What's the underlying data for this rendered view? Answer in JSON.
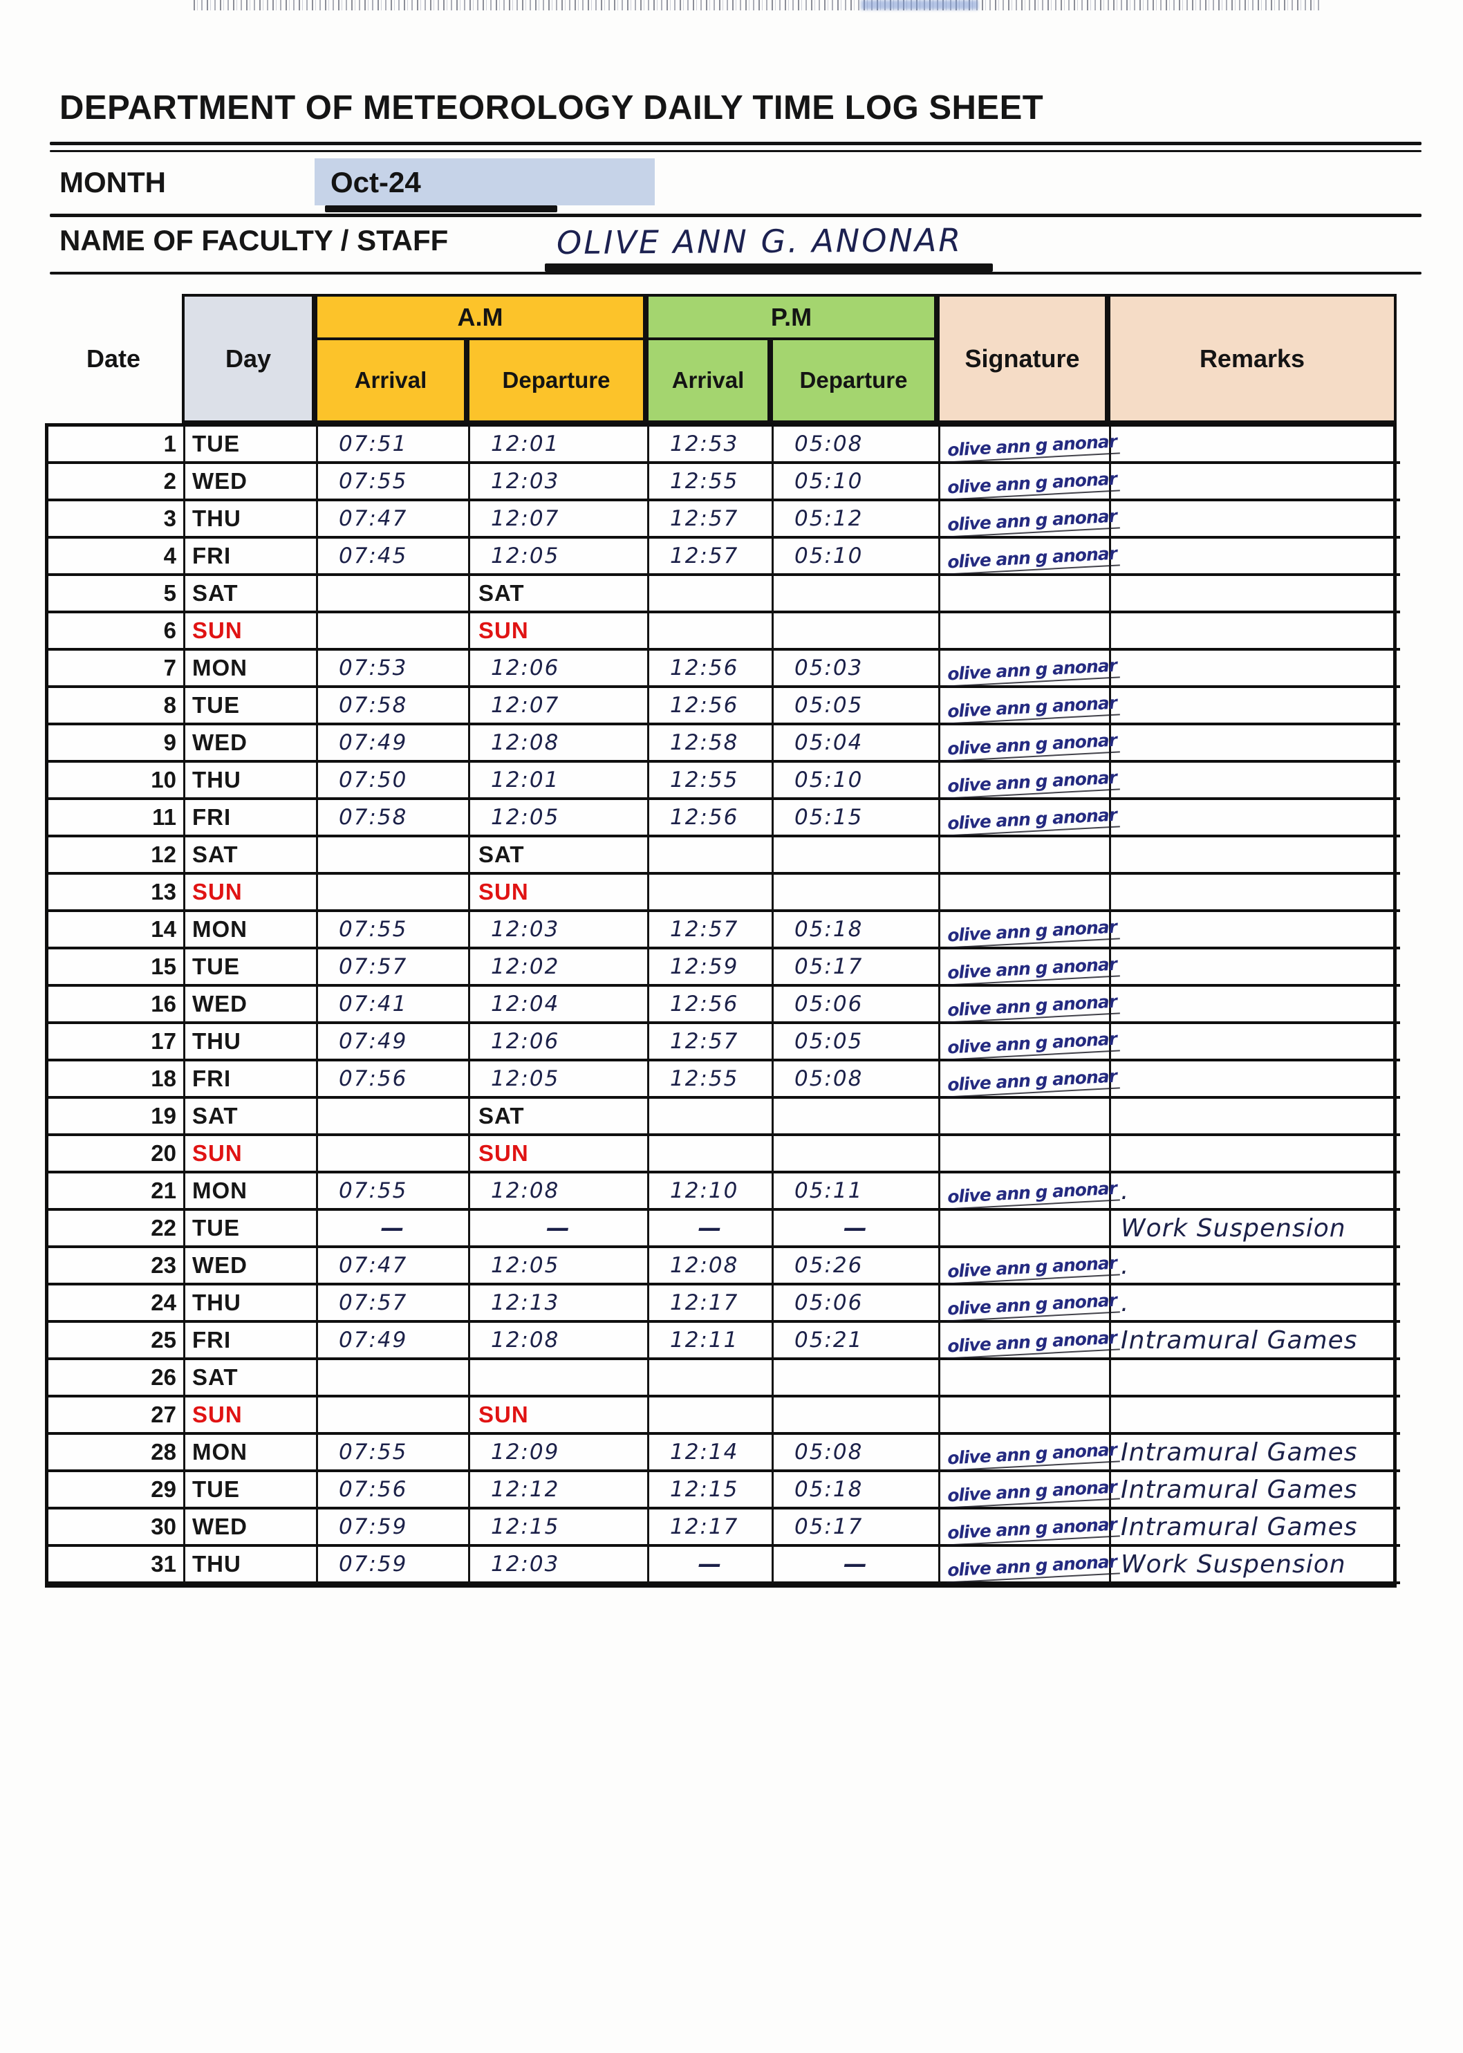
{
  "header": {
    "title": "DEPARTMENT OF METEOROLOGY DAILY TIME LOG SHEET",
    "month_label": "MONTH",
    "month_value": "Oct-24",
    "name_label": "NAME OF FACULTY / STAFF",
    "name_value": "OLIVE ANN G. ANONAR"
  },
  "table": {
    "group_am": "A.M",
    "group_pm": "P.M",
    "headers": {
      "date": "Date",
      "day": "Day",
      "arrival": "Arrival",
      "departure": "Departure",
      "signature": "Signature",
      "remarks": "Remarks"
    },
    "signature_text": "olive ann g anonar",
    "rows": [
      {
        "date": "1",
        "day": "TUE",
        "sun": false,
        "am_arrival": "07:51",
        "am_departure": "12:01",
        "dep_label": "",
        "pm_arrival": "12:53",
        "pm_departure": "05:08",
        "signature": true,
        "remark": ""
      },
      {
        "date": "2",
        "day": "WED",
        "sun": false,
        "am_arrival": "07:55",
        "am_departure": "12:03",
        "dep_label": "",
        "pm_arrival": "12:55",
        "pm_departure": "05:10",
        "signature": true,
        "remark": ""
      },
      {
        "date": "3",
        "day": "THU",
        "sun": false,
        "am_arrival": "07:47",
        "am_departure": "12:07",
        "dep_label": "",
        "pm_arrival": "12:57",
        "pm_departure": "05:12",
        "signature": true,
        "remark": ""
      },
      {
        "date": "4",
        "day": "FRI",
        "sun": false,
        "am_arrival": "07:45",
        "am_departure": "12:05",
        "dep_label": "",
        "pm_arrival": "12:57",
        "pm_departure": "05:10",
        "signature": true,
        "remark": ""
      },
      {
        "date": "5",
        "day": "SAT",
        "sun": false,
        "am_arrival": "",
        "am_departure": "",
        "dep_label": "SAT",
        "pm_arrival": "",
        "pm_departure": "",
        "signature": false,
        "remark": ""
      },
      {
        "date": "6",
        "day": "SUN",
        "sun": true,
        "am_arrival": "",
        "am_departure": "",
        "dep_label": "SUN",
        "pm_arrival": "",
        "pm_departure": "",
        "signature": false,
        "remark": ""
      },
      {
        "date": "7",
        "day": "MON",
        "sun": false,
        "am_arrival": "07:53",
        "am_departure": "12:06",
        "dep_label": "",
        "pm_arrival": "12:56",
        "pm_departure": "05:03",
        "signature": true,
        "remark": ""
      },
      {
        "date": "8",
        "day": "TUE",
        "sun": false,
        "am_arrival": "07:58",
        "am_departure": "12:07",
        "dep_label": "",
        "pm_arrival": "12:56",
        "pm_departure": "05:05",
        "signature": true,
        "remark": ""
      },
      {
        "date": "9",
        "day": "WED",
        "sun": false,
        "am_arrival": "07:49",
        "am_departure": "12:08",
        "dep_label": "",
        "pm_arrival": "12:58",
        "pm_departure": "05:04",
        "signature": true,
        "remark": ""
      },
      {
        "date": "10",
        "day": "THU",
        "sun": false,
        "am_arrival": "07:50",
        "am_departure": "12:01",
        "dep_label": "",
        "pm_arrival": "12:55",
        "pm_departure": "05:10",
        "signature": true,
        "remark": ""
      },
      {
        "date": "11",
        "day": "FRI",
        "sun": false,
        "am_arrival": "07:58",
        "am_departure": "12:05",
        "dep_label": "",
        "pm_arrival": "12:56",
        "pm_departure": "05:15",
        "signature": true,
        "remark": ""
      },
      {
        "date": "12",
        "day": "SAT",
        "sun": false,
        "am_arrival": "",
        "am_departure": "",
        "dep_label": "SAT",
        "pm_arrival": "",
        "pm_departure": "",
        "signature": false,
        "remark": ""
      },
      {
        "date": "13",
        "day": "SUN",
        "sun": true,
        "am_arrival": "",
        "am_departure": "",
        "dep_label": "SUN",
        "pm_arrival": "",
        "pm_departure": "",
        "signature": false,
        "remark": ""
      },
      {
        "date": "14",
        "day": "MON",
        "sun": false,
        "am_arrival": "07:55",
        "am_departure": "12:03",
        "dep_label": "",
        "pm_arrival": "12:57",
        "pm_departure": "05:18",
        "signature": true,
        "remark": ""
      },
      {
        "date": "15",
        "day": "TUE",
        "sun": false,
        "am_arrival": "07:57",
        "am_departure": "12:02",
        "dep_label": "",
        "pm_arrival": "12:59",
        "pm_departure": "05:17",
        "signature": true,
        "remark": ""
      },
      {
        "date": "16",
        "day": "WED",
        "sun": false,
        "am_arrival": "07:41",
        "am_departure": "12:04",
        "dep_label": "",
        "pm_arrival": "12:56",
        "pm_departure": "05:06",
        "signature": true,
        "remark": ""
      },
      {
        "date": "17",
        "day": "THU",
        "sun": false,
        "am_arrival": "07:49",
        "am_departure": "12:06",
        "dep_label": "",
        "pm_arrival": "12:57",
        "pm_departure": "05:05",
        "signature": true,
        "remark": ""
      },
      {
        "date": "18",
        "day": "FRI",
        "sun": false,
        "am_arrival": "07:56",
        "am_departure": "12:05",
        "dep_label": "",
        "pm_arrival": "12:55",
        "pm_departure": "05:08",
        "signature": true,
        "remark": ""
      },
      {
        "date": "19",
        "day": "SAT",
        "sun": false,
        "am_arrival": "",
        "am_departure": "",
        "dep_label": "SAT",
        "pm_arrival": "",
        "pm_departure": "",
        "signature": false,
        "remark": ""
      },
      {
        "date": "20",
        "day": "SUN",
        "sun": true,
        "am_arrival": "",
        "am_departure": "",
        "dep_label": "SUN",
        "pm_arrival": "",
        "pm_departure": "",
        "signature": false,
        "remark": ""
      },
      {
        "date": "21",
        "day": "MON",
        "sun": false,
        "am_arrival": "07:55",
        "am_departure": "12:08",
        "dep_label": "",
        "pm_arrival": "12:10",
        "pm_departure": "05:11",
        "signature": true,
        "remark": "."
      },
      {
        "date": "22",
        "day": "TUE",
        "sun": false,
        "am_arrival": "—",
        "am_departure": "—",
        "dep_label": "",
        "pm_arrival": "—",
        "pm_departure": "—",
        "signature": false,
        "remark": "Work Suspension"
      },
      {
        "date": "23",
        "day": "WED",
        "sun": false,
        "am_arrival": "07:47",
        "am_departure": "12:05",
        "dep_label": "",
        "pm_arrival": "12:08",
        "pm_departure": "05:26",
        "signature": true,
        "remark": "."
      },
      {
        "date": "24",
        "day": "THU",
        "sun": false,
        "am_arrival": "07:57",
        "am_departure": "12:13",
        "dep_label": "",
        "pm_arrival": "12:17",
        "pm_departure": "05:06",
        "signature": true,
        "remark": "."
      },
      {
        "date": "25",
        "day": "FRI",
        "sun": false,
        "am_arrival": "07:49",
        "am_departure": "12:08",
        "dep_label": "",
        "pm_arrival": "12:11",
        "pm_departure": "05:21",
        "signature": true,
        "remark": "Intramural Games"
      },
      {
        "date": "26",
        "day": "SAT",
        "sun": false,
        "am_arrival": "",
        "am_departure": "",
        "dep_label": "",
        "pm_arrival": "",
        "pm_departure": "",
        "signature": false,
        "remark": ""
      },
      {
        "date": "27",
        "day": "SUN",
        "sun": true,
        "am_arrival": "",
        "am_departure": "",
        "dep_label": "SUN",
        "pm_arrival": "",
        "pm_departure": "",
        "signature": false,
        "remark": ""
      },
      {
        "date": "28",
        "day": "MON",
        "sun": false,
        "am_arrival": "07:55",
        "am_departure": "12:09",
        "dep_label": "",
        "pm_arrival": "12:14",
        "pm_departure": "05:08",
        "signature": true,
        "remark": "Intramural Games"
      },
      {
        "date": "29",
        "day": "TUE",
        "sun": false,
        "am_arrival": "07:56",
        "am_departure": "12:12",
        "dep_label": "",
        "pm_arrival": "12:15",
        "pm_departure": "05:18",
        "signature": true,
        "remark": "Intramural Games"
      },
      {
        "date": "30",
        "day": "WED",
        "sun": false,
        "am_arrival": "07:59",
        "am_departure": "12:15",
        "dep_label": "",
        "pm_arrival": "12:17",
        "pm_departure": "05:17",
        "signature": true,
        "remark": "Intramural Games"
      },
      {
        "date": "31",
        "day": "THU",
        "sun": false,
        "am_arrival": "07:59",
        "am_departure": "12:03",
        "dep_label": "",
        "pm_arrival": "—",
        "pm_departure": "—",
        "signature": true,
        "remark": "Work Suspension"
      }
    ]
  },
  "colors": {
    "am_header": "#fcc32a",
    "pm_header": "#a4d56f",
    "day_header": "#dce0e8",
    "signature_header": "#f5dcc6",
    "remarks_header": "#f5dcc6",
    "month_highlight": "#c6d3e8",
    "sunday_red": "#e01313",
    "ink_navy": "#1b2048",
    "signature_blue": "#242a80"
  }
}
